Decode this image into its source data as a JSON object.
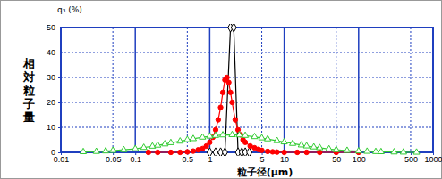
{
  "chart_data": {
    "type": "line",
    "annotations": [
      "q₃ (%)"
    ],
    "y_label": "相対粒子量",
    "x_label": "粒子径(μm)",
    "log": "x",
    "grid": true,
    "xlim": [
      0.01,
      1000
    ],
    "xticks": [
      0.01,
      0.05,
      0.1,
      0.5,
      1,
      5,
      10,
      50,
      100,
      500,
      1000
    ],
    "ylim": [
      0,
      50
    ],
    "yticks": [
      0,
      10,
      20,
      30,
      40,
      50
    ],
    "series": [
      {
        "color": "#000000",
        "marker": "diamond-open",
        "x": [
          1.0,
          1.2,
          1.4,
          1.6,
          1.9,
          2.1,
          2.4,
          2.7,
          3.0,
          3.4
        ],
        "values": [
          0,
          0,
          0,
          0,
          50,
          50,
          0,
          0,
          0,
          0
        ]
      },
      {
        "color": "#ff0000",
        "marker": "circle",
        "x": [
          0.15,
          0.2,
          0.3,
          0.4,
          0.5,
          0.6,
          0.7,
          0.8,
          0.9,
          1.0,
          1.1,
          1.2,
          1.3,
          1.4,
          1.5,
          1.6,
          1.7,
          1.8,
          1.9,
          2.0,
          2.2,
          2.4,
          2.6,
          2.8,
          3.0,
          3.5,
          4,
          4.5,
          5,
          6,
          7,
          8,
          10,
          15,
          20,
          30,
          50,
          100
        ],
        "values": [
          0,
          0,
          0,
          0,
          0.2,
          0.5,
          1,
          1.5,
          2.5,
          4,
          6,
          9,
          13,
          18,
          24,
          29,
          30,
          28,
          24,
          20,
          13,
          9,
          7,
          5,
          4,
          2.5,
          1.8,
          1.2,
          0.8,
          0.4,
          0.2,
          0.1,
          0,
          0,
          0,
          0,
          0,
          0
        ]
      },
      {
        "color": "#33cc33",
        "marker": "triangle-open",
        "x": [
          0.02,
          0.03,
          0.04,
          0.05,
          0.07,
          0.1,
          0.13,
          0.17,
          0.2,
          0.25,
          0.3,
          0.4,
          0.5,
          0.6,
          0.8,
          1,
          1.2,
          1.5,
          2,
          2.5,
          3,
          4,
          5,
          6,
          8,
          10,
          13,
          17,
          20,
          25,
          30,
          40,
          50,
          70,
          100,
          130,
          170,
          200,
          300,
          400,
          600
        ],
        "values": [
          0.2,
          0.3,
          0.5,
          0.7,
          1.0,
          1.4,
          1.9,
          2.4,
          2.8,
          3.3,
          3.8,
          4.4,
          5.0,
          5.4,
          6.0,
          6.4,
          6.7,
          6.9,
          7.0,
          6.9,
          6.7,
          6.2,
          5.7,
          5.3,
          4.6,
          4.1,
          3.5,
          2.9,
          2.5,
          2.1,
          1.8,
          1.3,
          1.0,
          0.7,
          0.5,
          0.35,
          0.25,
          0.2,
          0.1,
          0.05,
          0
        ]
      }
    ]
  }
}
